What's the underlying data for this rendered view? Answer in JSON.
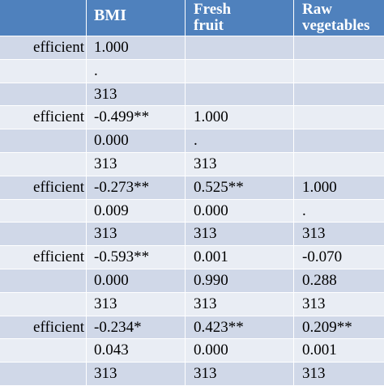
{
  "header": {
    "col0": "",
    "col1": "BMI",
    "col2_line1": "Fresh",
    "col2_line2": "fruit",
    "col3_line1": "Raw",
    "col3_line2": "vegetables"
  },
  "rows": [
    [
      "efficient",
      "1.000",
      "",
      ""
    ],
    [
      "",
      ".",
      "",
      ""
    ],
    [
      "",
      "313",
      "",
      ""
    ],
    [
      "efficient",
      "-0.499**",
      "1.000",
      ""
    ],
    [
      "",
      "0.000",
      ".",
      ""
    ],
    [
      "",
      "313",
      "313",
      ""
    ],
    [
      "efficient",
      "-0.273**",
      "0.525**",
      "1.000"
    ],
    [
      "",
      "0.009",
      "0.000",
      " ."
    ],
    [
      "",
      "313",
      "313",
      " 313"
    ],
    [
      "efficient",
      "-0.593**",
      "0.001",
      "-0.070"
    ],
    [
      "",
      "0.000",
      "0.990",
      " 0.288"
    ],
    [
      "",
      "313",
      "313",
      " 313"
    ],
    [
      "efficient",
      "-0.234*",
      "0.423**",
      "0.209**"
    ],
    [
      "",
      "0.043",
      "0.000",
      " 0.001"
    ],
    [
      "",
      "313",
      "313",
      " 313"
    ]
  ],
  "colors": {
    "header_bg": "#4f81bd",
    "row_odd_bg": "#d0d8e8",
    "row_even_bg": "#e9edf4"
  }
}
